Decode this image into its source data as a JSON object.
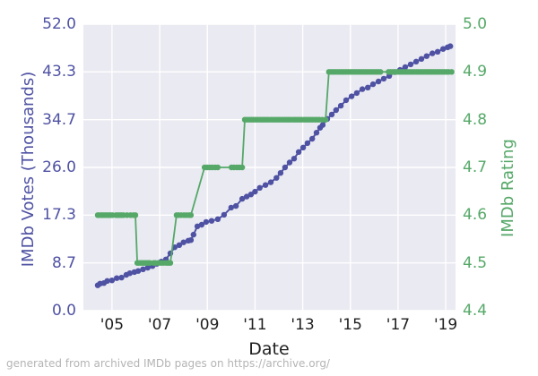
{
  "figure": {
    "footer": "generated from archived IMDb pages on https://archive.org/",
    "plot_background": "#eaeaf2",
    "grid_color": "#ffffff"
  },
  "chart_data": {
    "type": "line",
    "title": "",
    "xlabel": "Date",
    "grid": true,
    "legend": "none",
    "x_range": [
      2003.8,
      2019.41
    ],
    "x_tick_labels": [
      "'05",
      "'07",
      "'09",
      "'11",
      "'13",
      "'15",
      "'17",
      "'19"
    ],
    "x_tick_years": [
      2005,
      2007,
      2009,
      2011,
      2013,
      2015,
      2017,
      2019
    ],
    "left_axis": {
      "label": "IMDb Votes (Thousands)",
      "color": "#4f52a3",
      "range": [
        0,
        52
      ],
      "tick_labels": [
        "52.0",
        "43.3",
        "34.7",
        "26.0",
        "17.3",
        "8.7",
        "0.0"
      ],
      "tick_values": [
        52,
        43.333,
        34.667,
        26,
        17.333,
        8.667,
        0
      ]
    },
    "right_axis": {
      "label": "IMDb Rating",
      "color": "#55a868",
      "range": [
        4.4,
        5.0
      ],
      "tick_labels": [
        "5.0",
        "4.9",
        "4.8",
        "4.7",
        "4.6",
        "4.5",
        "4.4"
      ],
      "tick_values": [
        5.0,
        4.9,
        4.8,
        4.7,
        4.6,
        4.5,
        4.4
      ]
    },
    "series": [
      {
        "name": "IMDb Votes (Thousands)",
        "axis": "left",
        "color": "#4f52a3",
        "line_width": 2,
        "marker_radius": 3.2,
        "points": [
          [
            2004.4,
            4.6
          ],
          [
            2004.5,
            4.9
          ],
          [
            2004.66,
            5.0
          ],
          [
            2004.8,
            5.4
          ],
          [
            2005.0,
            5.5
          ],
          [
            2005.2,
            5.9
          ],
          [
            2005.4,
            6.0
          ],
          [
            2005.6,
            6.5
          ],
          [
            2005.75,
            6.8
          ],
          [
            2005.94,
            7.0
          ],
          [
            2006.1,
            7.2
          ],
          [
            2006.3,
            7.5
          ],
          [
            2006.5,
            7.8
          ],
          [
            2006.7,
            8.1
          ],
          [
            2006.88,
            8.5
          ],
          [
            2007.07,
            8.9
          ],
          [
            2007.26,
            9.3
          ],
          [
            2007.45,
            10.4
          ],
          [
            2007.63,
            11.5
          ],
          [
            2007.82,
            11.9
          ],
          [
            2008.0,
            12.4
          ],
          [
            2008.2,
            12.7
          ],
          [
            2008.31,
            12.8
          ],
          [
            2008.42,
            13.8
          ],
          [
            2008.58,
            15.3
          ],
          [
            2008.76,
            15.6
          ],
          [
            2008.95,
            16.1
          ],
          [
            2009.18,
            16.3
          ],
          [
            2009.44,
            16.6
          ],
          [
            2009.7,
            17.4
          ],
          [
            2010.0,
            18.7
          ],
          [
            2010.2,
            19.0
          ],
          [
            2010.46,
            20.3
          ],
          [
            2010.65,
            20.7
          ],
          [
            2010.83,
            21.1
          ],
          [
            2011.0,
            21.6
          ],
          [
            2011.2,
            22.3
          ],
          [
            2011.44,
            22.8
          ],
          [
            2011.66,
            23.3
          ],
          [
            2011.9,
            24.1
          ],
          [
            2012.07,
            25.0
          ],
          [
            2012.26,
            26.0
          ],
          [
            2012.45,
            26.9
          ],
          [
            2012.64,
            27.6
          ],
          [
            2012.83,
            28.8
          ],
          [
            2013.02,
            29.6
          ],
          [
            2013.2,
            30.4
          ],
          [
            2013.4,
            31.2
          ],
          [
            2013.58,
            32.3
          ],
          [
            2013.73,
            33.2
          ],
          [
            2013.84,
            33.7
          ],
          [
            2014.03,
            34.8
          ],
          [
            2014.22,
            35.6
          ],
          [
            2014.4,
            36.4
          ],
          [
            2014.6,
            37.2
          ],
          [
            2014.82,
            38.2
          ],
          [
            2015.05,
            38.9
          ],
          [
            2015.27,
            39.5
          ],
          [
            2015.5,
            40.2
          ],
          [
            2015.73,
            40.5
          ],
          [
            2015.95,
            41.1
          ],
          [
            2016.18,
            41.6
          ],
          [
            2016.4,
            42.1
          ],
          [
            2016.63,
            42.6
          ],
          [
            2016.86,
            43.3
          ],
          [
            2017.08,
            43.7
          ],
          [
            2017.3,
            44.2
          ],
          [
            2017.53,
            44.7
          ],
          [
            2017.76,
            45.2
          ],
          [
            2017.98,
            45.7
          ],
          [
            2018.2,
            46.2
          ],
          [
            2018.44,
            46.7
          ],
          [
            2018.66,
            47.0
          ],
          [
            2018.89,
            47.5
          ],
          [
            2019.08,
            47.8
          ],
          [
            2019.19,
            48.0
          ]
        ]
      },
      {
        "name": "IMDb Rating",
        "axis": "right",
        "color": "#55a868",
        "line_width": 1.8,
        "marker_radius": 3.2,
        "points": [
          [
            2004.4,
            4.6
          ],
          [
            2004.48,
            4.6
          ],
          [
            2004.56,
            4.6
          ],
          [
            2004.63,
            4.6
          ],
          [
            2004.71,
            4.6
          ],
          [
            2004.79,
            4.6
          ],
          [
            2004.87,
            4.6
          ],
          [
            2004.94,
            4.6
          ],
          [
            2005.02,
            4.6
          ],
          [
            2005.17,
            4.6
          ],
          [
            2005.25,
            4.6
          ],
          [
            2005.33,
            4.6
          ],
          [
            2005.4,
            4.6
          ],
          [
            2005.48,
            4.6
          ],
          [
            2005.63,
            4.6
          ],
          [
            2005.78,
            4.6
          ],
          [
            2005.9,
            4.6
          ],
          [
            2005.98,
            4.6
          ],
          [
            2006.06,
            4.5
          ],
          [
            2006.13,
            4.5
          ],
          [
            2006.21,
            4.5
          ],
          [
            2006.29,
            4.5
          ],
          [
            2006.36,
            4.5
          ],
          [
            2006.44,
            4.5
          ],
          [
            2006.52,
            4.5
          ],
          [
            2006.59,
            4.5
          ],
          [
            2006.75,
            4.5
          ],
          [
            2006.82,
            4.5
          ],
          [
            2006.94,
            4.5
          ],
          [
            2007.05,
            4.5
          ],
          [
            2007.16,
            4.5
          ],
          [
            2007.28,
            4.5
          ],
          [
            2007.37,
            4.5
          ],
          [
            2007.45,
            4.5
          ],
          [
            2007.71,
            4.6
          ],
          [
            2007.79,
            4.6
          ],
          [
            2007.9,
            4.6
          ],
          [
            2008.02,
            4.6
          ],
          [
            2008.13,
            4.6
          ],
          [
            2008.24,
            4.6
          ],
          [
            2008.31,
            4.6
          ],
          [
            2008.88,
            4.7
          ],
          [
            2008.99,
            4.7
          ],
          [
            2009.1,
            4.7
          ],
          [
            2009.21,
            4.7
          ],
          [
            2009.33,
            4.7
          ],
          [
            2009.44,
            4.7
          ],
          [
            2010.01,
            4.7
          ],
          [
            2010.12,
            4.7
          ],
          [
            2010.24,
            4.7
          ],
          [
            2010.35,
            4.7
          ],
          [
            2010.46,
            4.7
          ],
          [
            2010.57,
            4.8
          ],
          [
            2010.66,
            4.8
          ],
          [
            2010.76,
            4.8
          ],
          [
            2010.85,
            4.8
          ],
          [
            2010.94,
            4.8
          ],
          [
            2011.03,
            4.8
          ],
          [
            2011.12,
            4.8
          ],
          [
            2011.22,
            4.8
          ],
          [
            2011.31,
            4.8
          ],
          [
            2011.4,
            4.8
          ],
          [
            2011.49,
            4.8
          ],
          [
            2011.58,
            4.8
          ],
          [
            2011.68,
            4.8
          ],
          [
            2011.77,
            4.8
          ],
          [
            2011.86,
            4.8
          ],
          [
            2011.95,
            4.8
          ],
          [
            2012.04,
            4.8
          ],
          [
            2012.14,
            4.8
          ],
          [
            2012.23,
            4.8
          ],
          [
            2012.32,
            4.8
          ],
          [
            2012.41,
            4.8
          ],
          [
            2012.5,
            4.8
          ],
          [
            2012.6,
            4.8
          ],
          [
            2012.69,
            4.8
          ],
          [
            2012.78,
            4.8
          ],
          [
            2012.87,
            4.8
          ],
          [
            2012.96,
            4.8
          ],
          [
            2013.06,
            4.8
          ],
          [
            2013.15,
            4.8
          ],
          [
            2013.24,
            4.8
          ],
          [
            2013.33,
            4.8
          ],
          [
            2013.42,
            4.8
          ],
          [
            2013.52,
            4.8
          ],
          [
            2013.61,
            4.8
          ],
          [
            2013.7,
            4.8
          ],
          [
            2013.82,
            4.8
          ],
          [
            2013.96,
            4.8
          ],
          [
            2014.1,
            4.9
          ],
          [
            2014.19,
            4.9
          ],
          [
            2014.28,
            4.9
          ],
          [
            2014.37,
            4.9
          ],
          [
            2014.46,
            4.9
          ],
          [
            2014.55,
            4.9
          ],
          [
            2014.64,
            4.9
          ],
          [
            2014.73,
            4.9
          ],
          [
            2014.82,
            4.9
          ],
          [
            2014.91,
            4.9
          ],
          [
            2015.0,
            4.9
          ],
          [
            2015.09,
            4.9
          ],
          [
            2015.18,
            4.9
          ],
          [
            2015.27,
            4.9
          ],
          [
            2015.36,
            4.9
          ],
          [
            2015.45,
            4.9
          ],
          [
            2015.54,
            4.9
          ],
          [
            2015.63,
            4.9
          ],
          [
            2015.72,
            4.9
          ],
          [
            2015.81,
            4.9
          ],
          [
            2015.9,
            4.9
          ],
          [
            2015.99,
            4.9
          ],
          [
            2016.08,
            4.9
          ],
          [
            2016.17,
            4.9
          ],
          [
            2016.26,
            4.9
          ],
          [
            2016.6,
            4.9
          ],
          [
            2016.69,
            4.9
          ],
          [
            2016.78,
            4.9
          ],
          [
            2016.87,
            4.9
          ],
          [
            2016.96,
            4.9
          ],
          [
            2017.05,
            4.9
          ],
          [
            2017.14,
            4.9
          ],
          [
            2017.23,
            4.9
          ],
          [
            2017.32,
            4.9
          ],
          [
            2017.41,
            4.9
          ],
          [
            2017.5,
            4.9
          ],
          [
            2017.59,
            4.9
          ],
          [
            2017.68,
            4.9
          ],
          [
            2017.77,
            4.9
          ],
          [
            2017.86,
            4.9
          ],
          [
            2017.95,
            4.9
          ],
          [
            2018.04,
            4.9
          ],
          [
            2018.13,
            4.9
          ],
          [
            2018.22,
            4.9
          ],
          [
            2018.31,
            4.9
          ],
          [
            2018.4,
            4.9
          ],
          [
            2018.49,
            4.9
          ],
          [
            2018.58,
            4.9
          ],
          [
            2018.67,
            4.9
          ],
          [
            2018.76,
            4.9
          ],
          [
            2018.85,
            4.9
          ],
          [
            2018.94,
            4.9
          ],
          [
            2019.03,
            4.9
          ],
          [
            2019.12,
            4.9
          ],
          [
            2019.25,
            4.9
          ]
        ]
      }
    ]
  }
}
